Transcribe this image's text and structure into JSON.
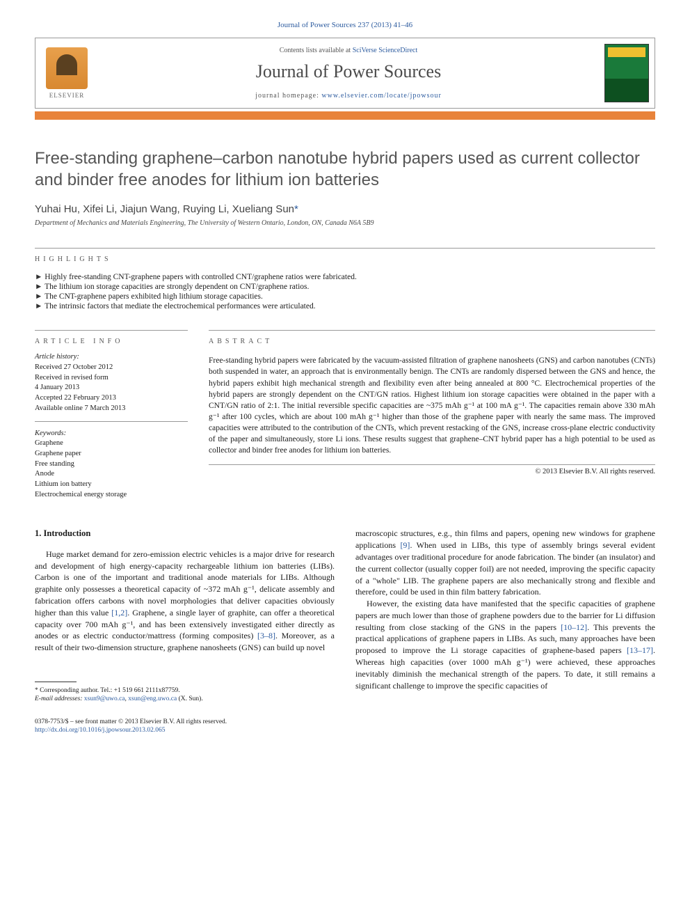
{
  "citation": "Journal of Power Sources 237 (2013) 41–46",
  "header": {
    "contents_text": "Contents lists available at ",
    "contents_link": "SciVerse ScienceDirect",
    "journal_name": "Journal of Power Sources",
    "homepage_label": "journal homepage: ",
    "homepage_url": "www.elsevier.com/locate/jpowsour",
    "publisher": "ELSEVIER"
  },
  "title": "Free-standing graphene–carbon nanotube hybrid papers used as current collector and binder free anodes for lithium ion batteries",
  "authors": "Yuhai Hu, Xifei Li, Jiajun Wang, Ruying Li, Xueliang Sun",
  "corr_mark": "*",
  "affiliation": "Department of Mechanics and Materials Engineering, The University of Western Ontario, London, ON, Canada N6A 5B9",
  "highlights_label": "highlights",
  "highlights": [
    "Highly free-standing CNT-graphene papers with controlled CNT/graphene ratios were fabricated.",
    "The lithium ion storage capacities are strongly dependent on CNT/graphene ratios.",
    "The CNT-graphene papers exhibited high lithium storage capacities.",
    "The intrinsic factors that mediate the electrochemical performances were articulated."
  ],
  "article_info_label": "article info",
  "history": {
    "label": "Article history:",
    "received": "Received 27 October 2012",
    "revised1": "Received in revised form",
    "revised2": "4 January 2013",
    "accepted": "Accepted 22 February 2013",
    "online": "Available online 7 March 2013"
  },
  "keywords": {
    "label": "Keywords:",
    "items": [
      "Graphene",
      "Graphene paper",
      "Free standing",
      "Anode",
      "Lithium ion battery",
      "Electrochemical energy storage"
    ]
  },
  "abstract_label": "abstract",
  "abstract": "Free-standing hybrid papers were fabricated by the vacuum-assisted filtration of graphene nanosheets (GNS) and carbon nanotubes (CNTs) both suspended in water, an approach that is environmentally benign. The CNTs are randomly dispersed between the GNS and hence, the hybrid papers exhibit high mechanical strength and flexibility even after being annealed at 800 °C. Electrochemical properties of the hybrid papers are strongly dependent on the CNT/GN ratios. Highest lithium ion storage capacities were obtained in the paper with a CNT/GN ratio of 2:1. The initial reversible specific capacities are ~375 mAh g⁻¹ at 100 mA g⁻¹. The capacities remain above 330 mAh g⁻¹ after 100 cycles, which are about 100 mAh g⁻¹ higher than those of the graphene paper with nearly the same mass. The improved capacities were attributed to the contribution of the CNTs, which prevent restacking of the GNS, increase cross-plane electric conductivity of the paper and simultaneously, store Li ions. These results suggest that graphene–CNT hybrid paper has a high potential to be used as collector and binder free anodes for lithium ion batteries.",
  "copyright": "© 2013 Elsevier B.V. All rights reserved.",
  "intro_heading": "1. Introduction",
  "col1_p1a": "Huge market demand for zero-emission electric vehicles is a major drive for research and development of high energy-capacity rechargeable lithium ion batteries (LIBs). Carbon is one of the important and traditional anode materials for LIBs. Although graphite only possesses a theoretical capacity of ~372 mAh g⁻¹, delicate assembly and fabrication offers carbons with novel morphologies that deliver capacities obviously higher than this value ",
  "col1_ref1": "[1,2]",
  "col1_p1b": ". Graphene, a single layer of graphite, can offer a theoretical capacity over 700 mAh g⁻¹, and has been extensively investigated either directly as anodes or as electric conductor/mattress (forming composites) ",
  "col1_ref2": "[3–8]",
  "col1_p1c": ". Moreover, as a result of their two-dimension structure, graphene nanosheets (GNS) can build up novel",
  "col2_p1a": "macroscopic structures, e.g., thin films and papers, opening new windows for graphene applications ",
  "col2_ref1": "[9]",
  "col2_p1b": ". When used in LIBs, this type of assembly brings several evident advantages over traditional procedure for anode fabrication. The binder (an insulator) and the current collector (usually copper foil) are not needed, improving the specific capacity of a \"whole\" LIB. The graphene papers are also mechanically strong and flexible and therefore, could be used in thin film battery fabrication.",
  "col2_p2a": "However, the existing data have manifested that the specific capacities of graphene papers are much lower than those of graphene powders due to the barrier for Li diffusion resulting from close stacking of the GNS in the papers ",
  "col2_ref2": "[10–12]",
  "col2_p2b": ". This prevents the practical applications of graphene papers in LIBs. As such, many approaches have been proposed to improve the Li storage capacities of graphene-based papers ",
  "col2_ref3": "[13–17]",
  "col2_p2c": ". Whereas high capacities (over 1000 mAh g⁻¹) were achieved, these approaches inevitably diminish the mechanical strength of the papers. To date, it still remains a significant challenge to improve the specific capacities of",
  "footnote": {
    "corr": "* Corresponding author. Tel.: +1 519 661 2111x87759.",
    "email_label": "E-mail addresses: ",
    "email1": "xsun9@uwo.ca",
    "email_sep": ", ",
    "email2": "xsun@eng.uwo.ca",
    "email_tail": " (X. Sun)."
  },
  "bottom": {
    "issn": "0378-7753/$ – see front matter © 2013 Elsevier B.V. All rights reserved.",
    "doi": "http://dx.doi.org/10.1016/j.jpowsour.2013.02.065"
  },
  "colors": {
    "link": "#2b5a9e",
    "orange_bar": "#e8833a",
    "title_gray": "#555555"
  }
}
